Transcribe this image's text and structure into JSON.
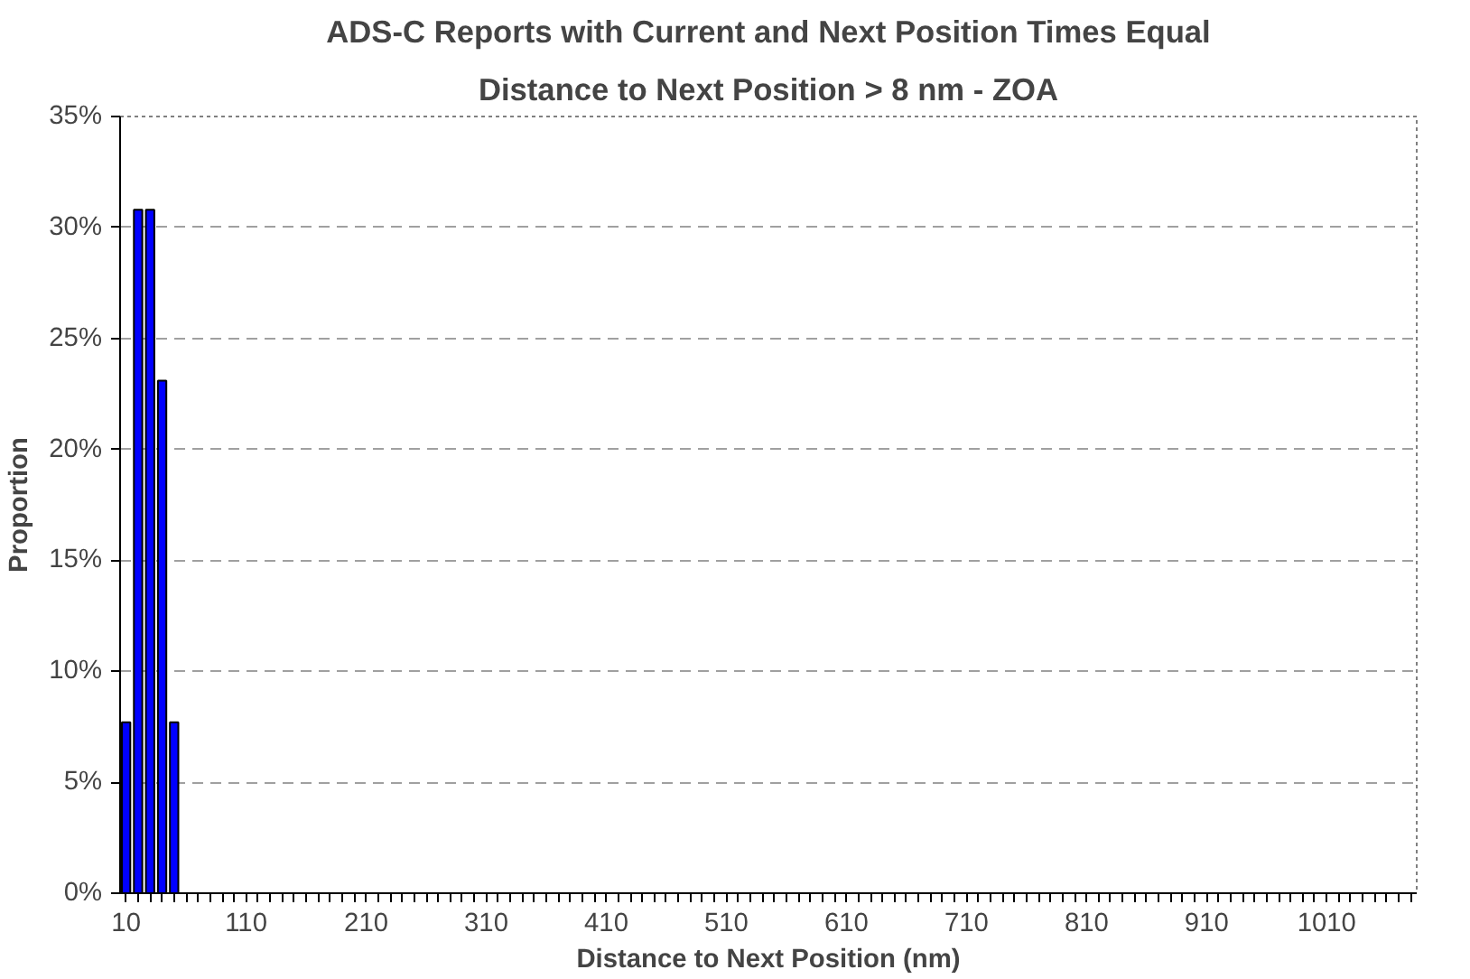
{
  "chart_data": {
    "type": "bar",
    "title": "ADS-C Reports with Current and Next Position Times Equal",
    "subtitle": "Distance to Next Position > 8 nm - ZOA",
    "xlabel": "Distance to Next Position (nm)",
    "ylabel": "Proportion",
    "categories": [
      "10",
      null,
      null,
      null,
      null,
      null,
      null,
      null,
      null,
      null,
      "110",
      null,
      null,
      null,
      null,
      null,
      null,
      null,
      null,
      null,
      "210",
      null,
      null,
      null,
      null,
      null,
      null,
      null,
      null,
      null,
      "310",
      null,
      null,
      null,
      null,
      null,
      null,
      null,
      null,
      null,
      "410",
      null,
      null,
      null,
      null,
      null,
      null,
      null,
      null,
      null,
      "510",
      null,
      null,
      null,
      null,
      null,
      null,
      null,
      null,
      null,
      "610",
      null,
      null,
      null,
      null,
      null,
      null,
      null,
      null,
      null,
      "710",
      null,
      null,
      null,
      null,
      null,
      null,
      null,
      null,
      null,
      "810",
      null,
      null,
      null,
      null,
      null,
      null,
      null,
      null,
      null,
      "910",
      null,
      null,
      null,
      null,
      null,
      null,
      null,
      null,
      null,
      "1010",
      null,
      null,
      null,
      null,
      null,
      null,
      null
    ],
    "values": [
      7.7,
      30.8,
      30.8,
      23.1,
      7.7,
      0,
      0,
      0,
      0,
      0,
      0,
      0,
      0,
      0,
      0,
      0,
      0,
      0,
      0,
      0,
      0,
      0,
      0,
      0,
      0,
      0,
      0,
      0,
      0,
      0,
      0,
      0,
      0,
      0,
      0,
      0,
      0,
      0,
      0,
      0,
      0,
      0,
      0,
      0,
      0,
      0,
      0,
      0,
      0,
      0,
      0,
      0,
      0,
      0,
      0,
      0,
      0,
      0,
      0,
      0,
      0,
      0,
      0,
      0,
      0,
      0,
      0,
      0,
      0,
      0,
      0,
      0,
      0,
      0,
      0,
      0,
      0,
      0,
      0,
      0,
      0,
      0,
      0,
      0,
      0,
      0,
      0,
      0,
      0,
      0,
      0,
      0,
      0,
      0,
      0,
      0,
      0,
      0,
      0,
      0,
      0,
      0,
      0,
      0,
      0,
      0,
      0,
      0
    ],
    "color": "#0000ff",
    "ylim": [
      0,
      35
    ],
    "yticks": [
      {
        "value": 0,
        "label": "0%"
      },
      {
        "value": 5,
        "label": "5%"
      },
      {
        "value": 10,
        "label": "10%"
      },
      {
        "value": 15,
        "label": "15%"
      },
      {
        "value": 20,
        "label": "20%"
      },
      {
        "value": 25,
        "label": "25%"
      },
      {
        "value": 30,
        "label": "30%"
      },
      {
        "value": 35,
        "label": "35%"
      }
    ],
    "grid": "y"
  }
}
